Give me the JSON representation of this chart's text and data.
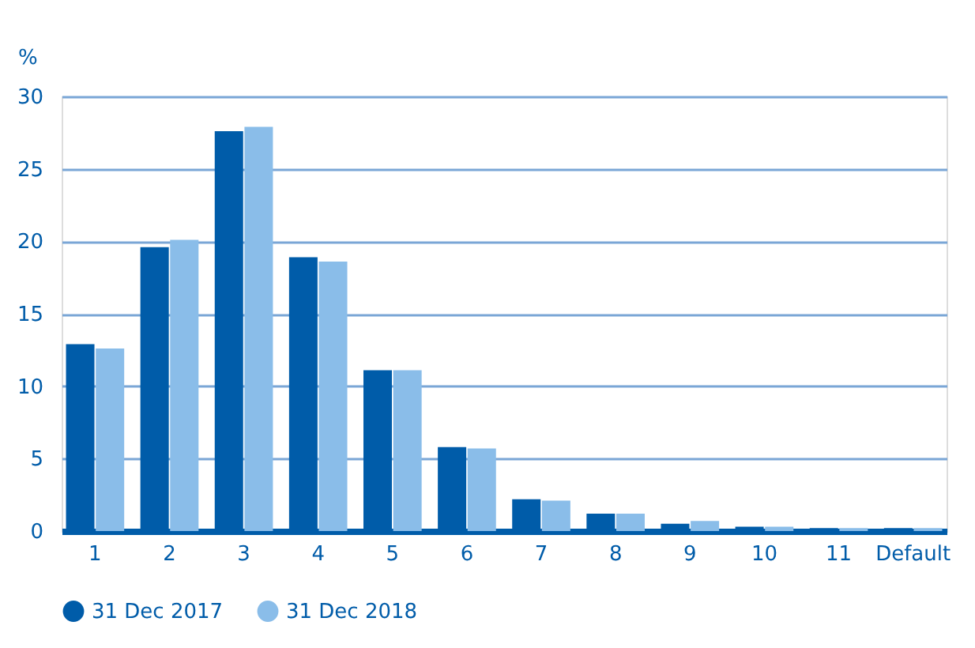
{
  "chart_data": {
    "type": "bar",
    "ylabel": "%",
    "categories": [
      "1",
      "2",
      "3",
      "4",
      "5",
      "6",
      "7",
      "8",
      "9",
      "10",
      "11",
      "Default"
    ],
    "series": [
      {
        "name": "31 Dec 2017",
        "color": "#005ca9",
        "values": [
          12.9,
          19.6,
          27.6,
          18.9,
          11.1,
          5.8,
          2.2,
          1.2,
          0.5,
          0.3,
          0.2,
          0.2
        ]
      },
      {
        "name": "31 Dec 2018",
        "color": "#8abde9",
        "values": [
          12.6,
          20.1,
          27.9,
          18.6,
          11.1,
          5.7,
          2.1,
          1.2,
          0.7,
          0.3,
          0.2,
          0.2
        ]
      }
    ],
    "ylim": [
      0,
      30
    ],
    "yticks": [
      0,
      5,
      10,
      15,
      20,
      25,
      30
    ],
    "grid": "y",
    "legend": "bottom left"
  }
}
